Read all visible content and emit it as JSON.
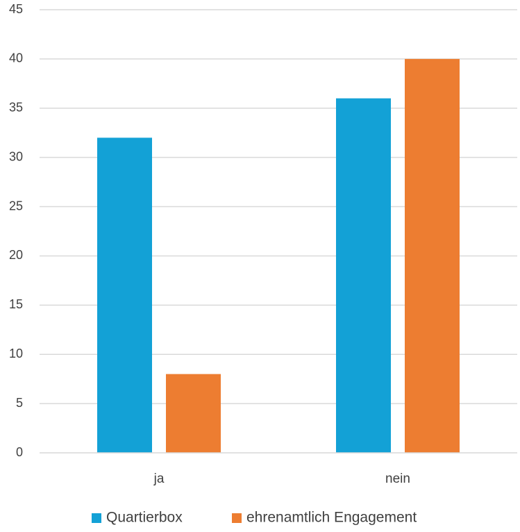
{
  "chart_data": {
    "type": "bar",
    "title": "",
    "xlabel": "",
    "ylabel": "",
    "categories": [
      "ja",
      "nein"
    ],
    "series": [
      {
        "name": "Quartierbox",
        "color": "#13A1D6",
        "values": [
          32,
          36
        ]
      },
      {
        "name": "ehrenamtlich Engagement",
        "color": "#ED7D31",
        "values": [
          8,
          40
        ]
      }
    ],
    "ylim": [
      0,
      45
    ],
    "yticks": [
      0,
      5,
      10,
      15,
      20,
      25,
      30,
      35,
      40,
      45
    ],
    "grid": true,
    "legend_position": "bottom"
  }
}
